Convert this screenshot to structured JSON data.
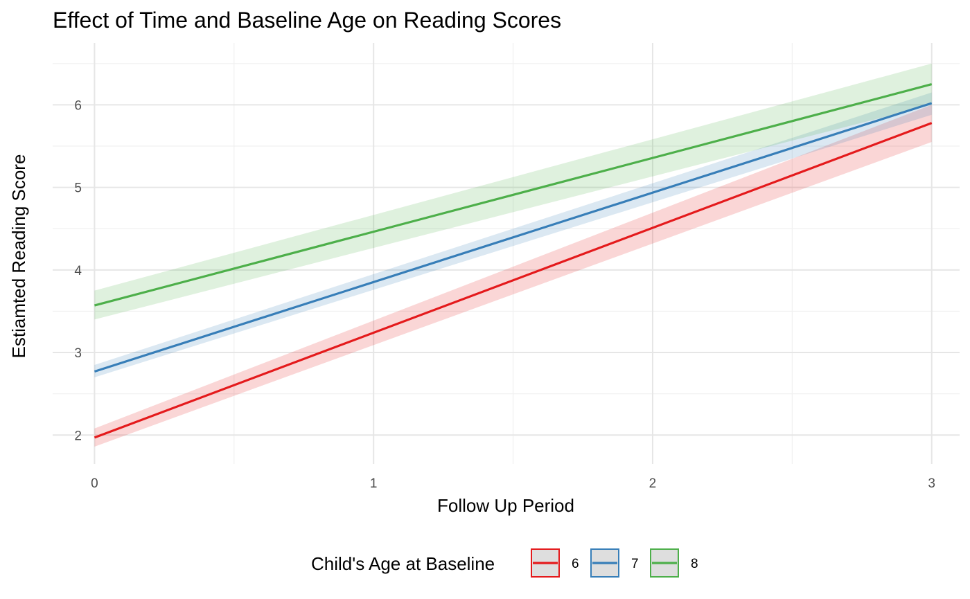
{
  "chart_data": {
    "type": "line",
    "title": "Effect of Time and Baseline Age on Reading Scores",
    "xlabel": "Follow Up Period",
    "ylabel": "Estiamted Reading Score",
    "xlim": [
      -0.15,
      3.1
    ],
    "ylim": [
      1.65,
      6.75
    ],
    "x_ticks": [
      0,
      1,
      2,
      3
    ],
    "y_ticks": [
      2,
      3,
      4,
      5,
      6
    ],
    "grid": true,
    "legend": {
      "title": "Child's Age at Baseline",
      "position": "bottom"
    },
    "series": [
      {
        "name": "6",
        "color": "#e41a1c",
        "x": [
          0,
          3
        ],
        "y": [
          1.97,
          5.78
        ],
        "lower": [
          1.86,
          5.55
        ],
        "upper": [
          2.08,
          6.0
        ]
      },
      {
        "name": "7",
        "color": "#377eb8",
        "x": [
          0,
          3
        ],
        "y": [
          2.77,
          6.02
        ],
        "lower": [
          2.7,
          5.88
        ],
        "upper": [
          2.85,
          6.15
        ]
      },
      {
        "name": "8",
        "color": "#4daf4a",
        "x": [
          0,
          3
        ],
        "y": [
          3.57,
          6.25
        ],
        "lower": [
          3.4,
          6.0
        ],
        "upper": [
          3.75,
          6.5
        ]
      }
    ]
  }
}
